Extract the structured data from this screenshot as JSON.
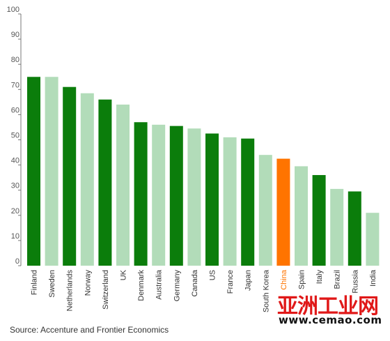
{
  "chart_data": {
    "type": "bar",
    "categories": [
      "Finland",
      "Sweden",
      "Netherlands",
      "Norway",
      "Switzerland",
      "UK",
      "Denmark",
      "Australia",
      "Germany",
      "Canada",
      "US",
      "France",
      "Japan",
      "South Korea",
      "China",
      "Spain",
      "Italy",
      "Brazil",
      "Russia",
      "India"
    ],
    "values": [
      75,
      75,
      71,
      68.5,
      66,
      64,
      57,
      56,
      55.5,
      54.5,
      52.5,
      51,
      50.5,
      44,
      42.5,
      39.5,
      36,
      30.5,
      29.5,
      21
    ],
    "bar_colors": [
      "#0b7d0b",
      "#b2dcb9",
      "#0b7d0b",
      "#b2dcb9",
      "#0b7d0b",
      "#b2dcb9",
      "#0b7d0b",
      "#b2dcb9",
      "#0b7d0b",
      "#b2dcb9",
      "#0b7d0b",
      "#b2dcb9",
      "#0b7d0b",
      "#b2dcb9",
      "#ff7400",
      "#b2dcb9",
      "#0b7d0b",
      "#b2dcb9",
      "#0b7d0b",
      "#b2dcb9"
    ],
    "highlight_label_color": "#ff7400",
    "label_color": "#333333",
    "axis_color": "#777777",
    "yticks": [
      0,
      10,
      20,
      30,
      40,
      50,
      60,
      70,
      80,
      90,
      100
    ],
    "ylim": [
      0,
      100
    ],
    "grid": false,
    "title": "",
    "xlabel": "",
    "ylabel": ""
  },
  "source": "Source: Accenture and Frontier Economics",
  "watermark": {
    "cn_text": "亚洲工业网",
    "url_text": "www.cemao.com"
  }
}
